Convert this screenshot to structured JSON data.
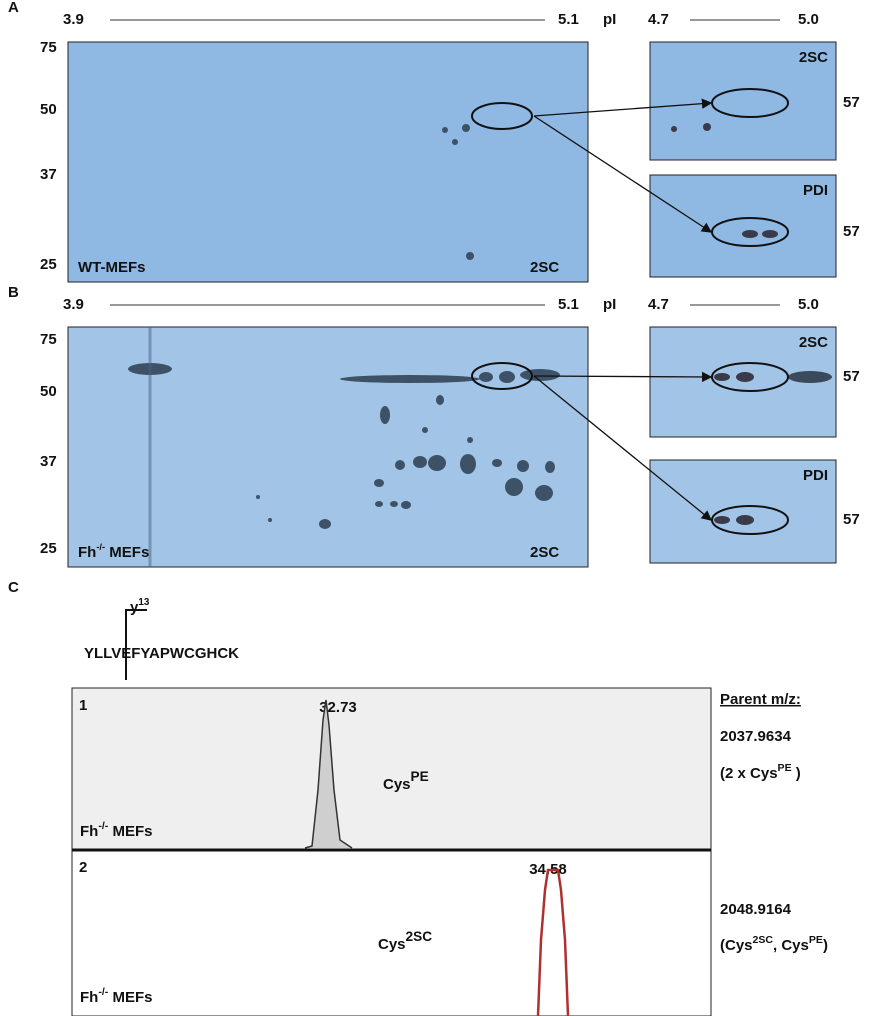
{
  "panel_a": {
    "label": "A",
    "axis": {
      "start": "3.9",
      "end": "5.1",
      "unit": "pI",
      "inset_start": "4.7",
      "inset_end": "5.0"
    },
    "mw": [
      75,
      50,
      37,
      25
    ],
    "sample": [
      "WT-MEFs"
    ],
    "gel_label": "2SC",
    "insets": [
      {
        "label": "2SC",
        "mw": 57
      },
      {
        "label": "PDI",
        "mw": 57
      }
    ]
  },
  "panel_b": {
    "label": "B",
    "axis": {
      "start": "3.9",
      "end": "5.1",
      "unit": "pI",
      "inset_start": "4.7",
      "inset_end": "5.0"
    },
    "mw": [
      75,
      50,
      37,
      25
    ],
    "sample": [
      "Fh",
      "-/-",
      " MEFs"
    ],
    "gel_label": "2SC",
    "insets": [
      {
        "label": "2SC",
        "mw": 57
      },
      {
        "label": "PDI",
        "mw": 57
      }
    ]
  },
  "panel_c": {
    "label": "C",
    "ion": [
      "y",
      "13"
    ],
    "sequence": "YLLVEFYAPWCGHCK",
    "parent_title": "Parent m/z:",
    "traces": [
      {
        "index": "1",
        "retention_time": "32.73",
        "species": [
          "Cys",
          "PE"
        ],
        "sample": [
          "Fh",
          "-/-",
          " MEFs"
        ],
        "parent_mz": "2037.9634",
        "parent_note": [
          "(2 x Cys",
          "PE",
          " )"
        ]
      },
      {
        "index": "2",
        "retention_time": "34.58",
        "species": [
          "Cys",
          "2SC"
        ],
        "sample": [
          "Fh",
          "-/-",
          " MEFs"
        ],
        "parent_mz": "2048.9164",
        "parent_note": [
          "(Cys",
          "2SC",
          ", Cys",
          "PE",
          ")"
        ]
      }
    ]
  }
}
